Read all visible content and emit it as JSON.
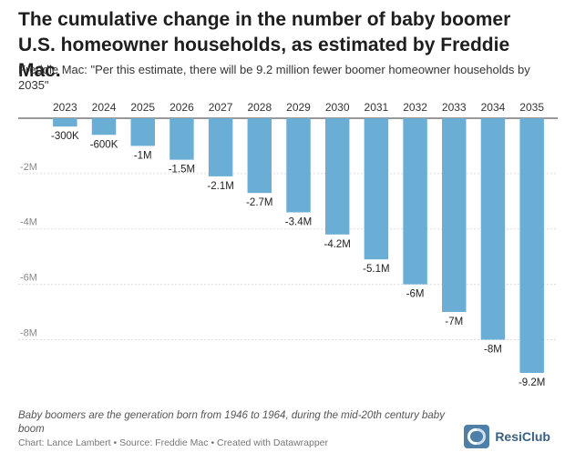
{
  "title": "The cumulative change in the number of baby boomer U.S. homeowner households, as estimated by Freddie Mac.",
  "subtitle": "Freddie Mac: \"Per this estimate, there will be 9.2 million fewer boomer homeowner households by 2035\"",
  "note": "Baby boomers are the generation born from 1946 to 1964, during the mid-20th century baby boom",
  "credit": "Chart: Lance Lambert • Source: Freddie Mac • Created with Datawrapper",
  "brand": {
    "name": "ResiClub",
    "logo_icon": "resiclub-logo-icon"
  },
  "colors": {
    "bar": "#6aaed6",
    "axis": "#333333",
    "grid": "#dddddd",
    "tick": "#888888"
  },
  "chart_data": {
    "type": "bar",
    "categories": [
      "2023",
      "2024",
      "2025",
      "2026",
      "2027",
      "2028",
      "2029",
      "2030",
      "2031",
      "2032",
      "2033",
      "2034",
      "2035"
    ],
    "values": [
      -300000,
      -600000,
      -1000000,
      -1500000,
      -2100000,
      -2700000,
      -3400000,
      -4200000,
      -5100000,
      -6000000,
      -7000000,
      -8000000,
      -9200000
    ],
    "data_labels": [
      "-300K",
      "-600K",
      "-1M",
      "-1.5M",
      "-2.1M",
      "-2.7M",
      "-3.4M",
      "-4.2M",
      "-5.1M",
      "-6M",
      "-7M",
      "-8M",
      "-9.2M"
    ],
    "y_ticks": [
      -2000000,
      -4000000,
      -6000000,
      -8000000
    ],
    "y_tick_labels": [
      "-2M",
      "-4M",
      "-6M",
      "-8M"
    ],
    "ylim": [
      -9200000,
      0
    ],
    "x_axis_position": "top",
    "grid": true,
    "legend": "none"
  }
}
